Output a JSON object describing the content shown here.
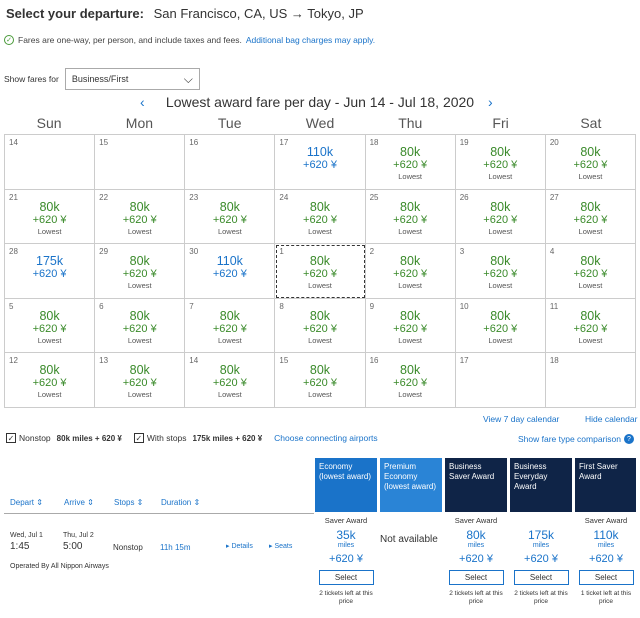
{
  "header": {
    "label": "Select your departure:",
    "route": "San Francisco, CA, US → Tokyo, JP"
  },
  "notice": {
    "text": "Fares are one-way, per person, and include taxes and fees.",
    "link": "Additional bag charges may apply."
  },
  "fares_for": {
    "label": "Show fares for",
    "value": "Business/First"
  },
  "calendar": {
    "title": "Lowest award fare per day - Jun 14 - Jul 18, 2020",
    "days": [
      "Sun",
      "Mon",
      "Tue",
      "Wed",
      "Thu",
      "Fri",
      "Sat"
    ],
    "cells": [
      {
        "d": "14"
      },
      {
        "d": "15"
      },
      {
        "d": "16"
      },
      {
        "d": "17",
        "m": "110k",
        "y": "+620 ¥",
        "hi": true
      },
      {
        "d": "18",
        "m": "80k",
        "y": "+620 ¥",
        "t": "Lowest"
      },
      {
        "d": "19",
        "m": "80k",
        "y": "+620 ¥",
        "t": "Lowest"
      },
      {
        "d": "20",
        "m": "80k",
        "y": "+620 ¥",
        "t": "Lowest"
      },
      {
        "d": "21",
        "m": "80k",
        "y": "+620 ¥",
        "t": "Lowest"
      },
      {
        "d": "22",
        "m": "80k",
        "y": "+620 ¥",
        "t": "Lowest"
      },
      {
        "d": "23",
        "m": "80k",
        "y": "+620 ¥",
        "t": "Lowest"
      },
      {
        "d": "24",
        "m": "80k",
        "y": "+620 ¥",
        "t": "Lowest"
      },
      {
        "d": "25",
        "m": "80k",
        "y": "+620 ¥",
        "t": "Lowest"
      },
      {
        "d": "26",
        "m": "80k",
        "y": "+620 ¥",
        "t": "Lowest"
      },
      {
        "d": "27",
        "m": "80k",
        "y": "+620 ¥",
        "t": "Lowest"
      },
      {
        "d": "28",
        "m": "175k",
        "y": "+620 ¥",
        "hi": true
      },
      {
        "d": "29",
        "m": "80k",
        "y": "+620 ¥",
        "t": "Lowest"
      },
      {
        "d": "30",
        "m": "110k",
        "y": "+620 ¥",
        "hi": true
      },
      {
        "d": "1",
        "m": "80k",
        "y": "+620 ¥",
        "t": "Lowest",
        "sel": true
      },
      {
        "d": "2",
        "m": "80k",
        "y": "+620 ¥",
        "t": "Lowest"
      },
      {
        "d": "3",
        "m": "80k",
        "y": "+620 ¥",
        "t": "Lowest"
      },
      {
        "d": "4",
        "m": "80k",
        "y": "+620 ¥",
        "t": "Lowest"
      },
      {
        "d": "5",
        "m": "80k",
        "y": "+620 ¥",
        "t": "Lowest"
      },
      {
        "d": "6",
        "m": "80k",
        "y": "+620 ¥",
        "t": "Lowest"
      },
      {
        "d": "7",
        "m": "80k",
        "y": "+620 ¥",
        "t": "Lowest"
      },
      {
        "d": "8",
        "m": "80k",
        "y": "+620 ¥",
        "t": "Lowest"
      },
      {
        "d": "9",
        "m": "80k",
        "y": "+620 ¥",
        "t": "Lowest"
      },
      {
        "d": "10",
        "m": "80k",
        "y": "+620 ¥",
        "t": "Lowest"
      },
      {
        "d": "11",
        "m": "80k",
        "y": "+620 ¥",
        "t": "Lowest"
      },
      {
        "d": "12",
        "m": "80k",
        "y": "+620 ¥",
        "t": "Lowest"
      },
      {
        "d": "13",
        "m": "80k",
        "y": "+620 ¥",
        "t": "Lowest"
      },
      {
        "d": "14",
        "m": "80k",
        "y": "+620 ¥",
        "t": "Lowest"
      },
      {
        "d": "15",
        "m": "80k",
        "y": "+620 ¥",
        "t": "Lowest"
      },
      {
        "d": "16",
        "m": "80k",
        "y": "+620 ¥",
        "t": "Lowest"
      },
      {
        "d": "17"
      },
      {
        "d": "18"
      }
    ],
    "view7": "View 7 day calendar",
    "hide": "Hide calendar"
  },
  "filters": {
    "nonstop": "Nonstop",
    "nonstop_price": "80k miles + 620 ¥",
    "withstops": "With stops",
    "withstops_price": "175k miles + 620 ¥",
    "connecting": "Choose connecting airports",
    "compare": "Show fare type comparison"
  },
  "columns": [
    {
      "label": "Economy (lowest award)"
    },
    {
      "label": "Premium Economy (lowest award)"
    },
    {
      "label": "Business Saver Award"
    },
    {
      "label": "Business Everyday Award"
    },
    {
      "label": "First Saver Award"
    }
  ],
  "sorts": {
    "depart": "Depart ⇕",
    "arrive": "Arrive ⇕",
    "stops": "Stops ⇕",
    "duration": "Duration ⇕"
  },
  "flight": {
    "dep_date": "Wed, Jul 1",
    "dep_time": "1:45",
    "arr_date": "Thu, Jul 2",
    "arr_time": "5:00",
    "stops": "Nonstop",
    "duration": "11h 15m",
    "details": "▸ Details",
    "seats": "▸ Seats",
    "operator": "Operated By All Nippon Airways",
    "not_available": "Not available",
    "fares": [
      {
        "sa": "Saver Award",
        "m": "35k",
        "ml": "miles",
        "y": "+620 ¥",
        "btn": "Select",
        "tl": "2 tickets left at this price"
      },
      {
        "sa": "Saver Award",
        "m": "80k",
        "ml": "miles",
        "y": "+620 ¥",
        "btn": "Select",
        "tl": "2 tickets left at this price"
      },
      {
        "sa": "",
        "m": "175k",
        "ml": "miles",
        "y": "+620 ¥",
        "btn": "Select",
        "tl": "2 tickets left at this price"
      },
      {
        "sa": "Saver Award",
        "m": "110k",
        "ml": "miles",
        "y": "+620 ¥",
        "btn": "Select",
        "tl": "1 ticket left at this price"
      }
    ]
  }
}
